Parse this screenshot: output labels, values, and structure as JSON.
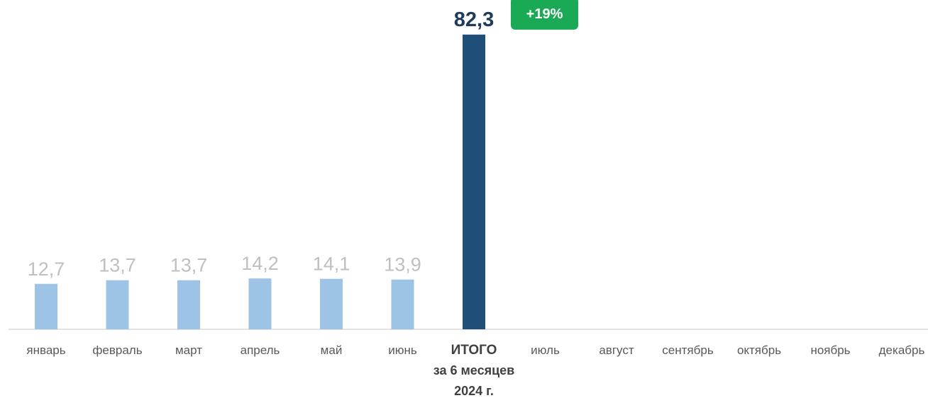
{
  "chart_data": {
    "type": "bar",
    "categories": [
      "январь",
      "февраль",
      "март",
      "апрель",
      "май",
      "июнь",
      "ИТОГО",
      "июль",
      "август",
      "сентябрь",
      "октябрь",
      "ноябрь",
      "декабрь"
    ],
    "total_category_lines": [
      "ИТОГО",
      "за 6 месяцев",
      "2024 г."
    ],
    "values": [
      12.7,
      13.7,
      13.7,
      14.2,
      14.1,
      13.9,
      82.3,
      null,
      null,
      null,
      null,
      null,
      null
    ],
    "value_labels": [
      "12,7",
      "13,7",
      "13,7",
      "14,2",
      "14,1",
      "13,9",
      "82,3",
      "",
      "",
      "",
      "",
      "",
      ""
    ],
    "highlight_index": 6,
    "badge": "+19%",
    "ylim": [
      0,
      88
    ],
    "grid": false,
    "colors": {
      "bar": "#9dc3e6",
      "total_bar": "#1f4e79",
      "value_label": "#bfbfbf",
      "total_label": "#1f3b5c",
      "badge_bg": "#1aaa55",
      "badge_text": "#ffffff",
      "axis": "#d9d9d9",
      "category_label": "#595959",
      "total_category_label": "#404040"
    }
  }
}
